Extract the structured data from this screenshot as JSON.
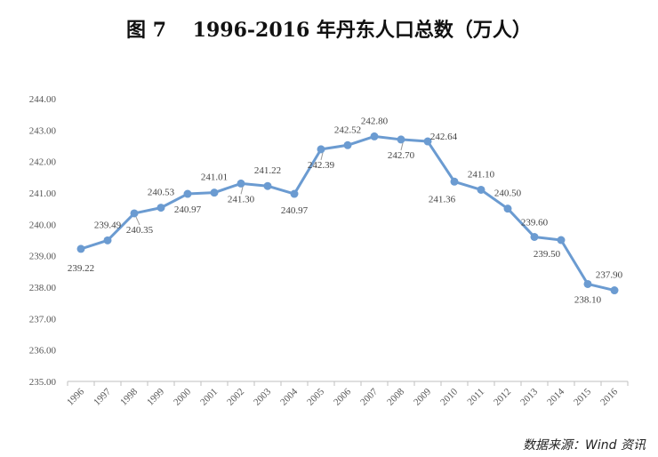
{
  "title": "图 7　 1996-2016 年丹东人口总数（万人）",
  "source": "数据来源：Wind 资讯",
  "colors": {
    "series": "#6b9bd1",
    "grid": "#d9d9d9",
    "axis": "#bfbfbf"
  },
  "chart_data": {
    "type": "line",
    "title": "图 7　 1996-2016 年丹东人口总数（万人）",
    "xlabel": "",
    "ylabel": "",
    "ylim": [
      235,
      244
    ],
    "ytick_step": 1,
    "ytick_labels": [
      "235.00",
      "236.00",
      "237.00",
      "238.00",
      "239.00",
      "240.00",
      "241.00",
      "242.00",
      "243.00",
      "244.00"
    ],
    "grid": false,
    "x": [
      "1996",
      "1997",
      "1998",
      "1999",
      "2000",
      "2001",
      "2002",
      "2003",
      "2004",
      "2005",
      "2006",
      "2007",
      "2008",
      "2009",
      "2010",
      "2011",
      "2012",
      "2013",
      "2014",
      "2015",
      "2016"
    ],
    "series": [
      {
        "values": [
          239.22,
          239.49,
          240.35,
          240.53,
          240.97,
          241.01,
          241.3,
          241.22,
          240.97,
          242.39,
          242.52,
          242.8,
          242.7,
          242.64,
          241.36,
          241.1,
          240.5,
          239.6,
          239.5,
          238.1,
          237.9
        ],
        "labels": [
          "239.22",
          "239.49",
          "240.35",
          "240.53",
          "240.97",
          "241.01",
          "241.30",
          "241.22",
          "240.97",
          "242.39",
          "242.52",
          "242.80",
          "242.70",
          "242.64",
          "241.36",
          "241.10",
          "240.50",
          "239.60",
          "239.50",
          "238.10",
          "237.90"
        ]
      }
    ]
  }
}
